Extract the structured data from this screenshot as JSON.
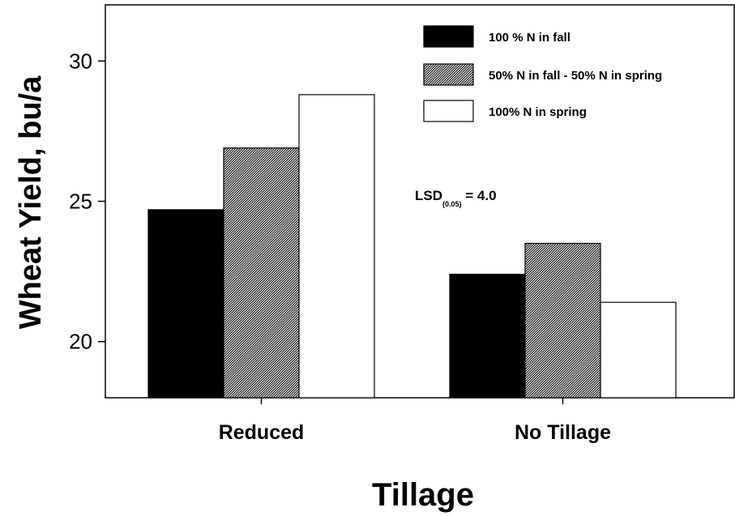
{
  "chart_data": {
    "type": "bar",
    "title": "",
    "xlabel": "Tillage",
    "ylabel": "Wheat Yield, bu/a",
    "categories": [
      "Reduced",
      "No Tillage"
    ],
    "series": [
      {
        "name": "100 % N in fall",
        "values": [
          24.7,
          22.4
        ],
        "fill": "solid-black"
      },
      {
        "name": "50% N in fall - 50% N in spring",
        "values": [
          26.9,
          23.5
        ],
        "fill": "hatched-gray"
      },
      {
        "name": "100% N in spring",
        "values": [
          28.8,
          21.4
        ],
        "fill": "white"
      }
    ],
    "ylim": [
      18,
      32
    ],
    "yticks": [
      "20",
      "25",
      "30"
    ],
    "grid": false,
    "legend_position": "top-right",
    "annotation": {
      "main": "LSD",
      "sub": "(0.05)",
      "rest": " = 4.0"
    },
    "colors": {
      "bar_solid": "#000000",
      "bar_empty": "#ffffff",
      "outline": "#000000"
    }
  }
}
